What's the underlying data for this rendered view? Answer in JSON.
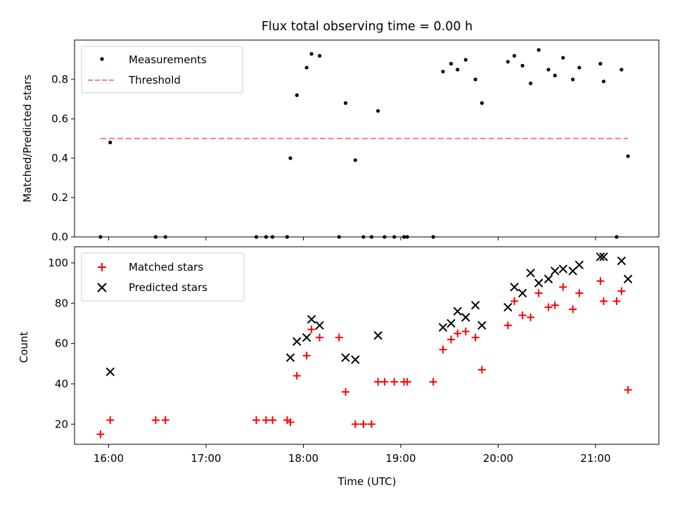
{
  "figure": {
    "title": "Flux total observing time = 0.00 h",
    "xlabel": "Time (UTC)"
  },
  "chart_data": [
    {
      "type": "scatter",
      "panel": "top",
      "ylabel": "Matched/Predicted stars",
      "xlim": [
        "15:39",
        "21:39"
      ],
      "ylim": [
        0,
        1.0
      ],
      "grid": false,
      "legend_placement": "top-left",
      "yticks": [
        0.0,
        0.2,
        0.4,
        0.6,
        0.8
      ],
      "ytick_labels": [
        "0.0",
        "0.2",
        "0.4",
        "0.6",
        "0.8"
      ],
      "series": [
        {
          "name": "Measurements",
          "marker": "dot",
          "color": "#000000",
          "points": [
            [
              "15:55",
              0.0
            ],
            [
              "16:01",
              0.48
            ],
            [
              "16:29",
              0.0
            ],
            [
              "16:35",
              0.0
            ],
            [
              "17:31",
              0.0
            ],
            [
              "17:37",
              0.0
            ],
            [
              "17:41",
              0.0
            ],
            [
              "17:50",
              0.0
            ],
            [
              "17:52",
              0.4
            ],
            [
              "17:56",
              0.72
            ],
            [
              "18:02",
              0.86
            ],
            [
              "18:05",
              0.93
            ],
            [
              "18:10",
              0.92
            ],
            [
              "18:22",
              0.0
            ],
            [
              "18:26",
              0.68
            ],
            [
              "18:32",
              0.39
            ],
            [
              "18:37",
              0.0
            ],
            [
              "18:42",
              0.0
            ],
            [
              "18:46",
              0.64
            ],
            [
              "18:50",
              0.0
            ],
            [
              "18:56",
              0.0
            ],
            [
              "19:02",
              0.0
            ],
            [
              "19:04",
              0.0
            ],
            [
              "19:20",
              0.0
            ],
            [
              "19:26",
              0.84
            ],
            [
              "19:31",
              0.88
            ],
            [
              "19:35",
              0.85
            ],
            [
              "19:40",
              0.9
            ],
            [
              "19:46",
              0.8
            ],
            [
              "19:50",
              0.68
            ],
            [
              "20:06",
              0.89
            ],
            [
              "20:10",
              0.92
            ],
            [
              "20:15",
              0.87
            ],
            [
              "20:20",
              0.78
            ],
            [
              "20:25",
              0.95
            ],
            [
              "20:31",
              0.85
            ],
            [
              "20:35",
              0.82
            ],
            [
              "20:40",
              0.91
            ],
            [
              "20:46",
              0.8
            ],
            [
              "20:50",
              0.86
            ],
            [
              "21:03",
              0.88
            ],
            [
              "21:05",
              0.79
            ],
            [
              "21:13",
              0.0
            ],
            [
              "21:16",
              0.85
            ],
            [
              "21:20",
              0.41
            ]
          ]
        },
        {
          "name": "Threshold",
          "style": "dashed",
          "color": "#ff7f7f",
          "points": [
            [
              "15:55",
              0.5
            ],
            [
              "21:20",
              0.5
            ]
          ]
        }
      ]
    },
    {
      "type": "scatter",
      "panel": "bottom",
      "ylabel": "Count",
      "xlabel": "Time (UTC)",
      "xlim": [
        "15:39",
        "21:39"
      ],
      "ylim": [
        10,
        108
      ],
      "grid": false,
      "legend_placement": "top-left",
      "yticks": [
        20,
        40,
        60,
        80,
        100
      ],
      "ytick_labels": [
        "20",
        "40",
        "60",
        "80",
        "100"
      ],
      "xticks": [
        "16:00",
        "17:00",
        "18:00",
        "19:00",
        "20:00",
        "21:00"
      ],
      "series": [
        {
          "name": "Matched stars",
          "marker": "plus",
          "color": "#ff0000",
          "points": [
            [
              "15:55",
              15
            ],
            [
              "16:01",
              22
            ],
            [
              "16:29",
              22
            ],
            [
              "16:35",
              22
            ],
            [
              "17:31",
              22
            ],
            [
              "17:37",
              22
            ],
            [
              "17:41",
              22
            ],
            [
              "17:50",
              22
            ],
            [
              "17:52",
              21
            ],
            [
              "17:56",
              44
            ],
            [
              "18:02",
              54
            ],
            [
              "18:05",
              67
            ],
            [
              "18:10",
              63
            ],
            [
              "18:22",
              63
            ],
            [
              "18:26",
              36
            ],
            [
              "18:32",
              20
            ],
            [
              "18:37",
              20
            ],
            [
              "18:42",
              20
            ],
            [
              "18:46",
              41
            ],
            [
              "18:50",
              41
            ],
            [
              "18:56",
              41
            ],
            [
              "19:02",
              41
            ],
            [
              "19:04",
              41
            ],
            [
              "19:20",
              41
            ],
            [
              "19:26",
              57
            ],
            [
              "19:31",
              62
            ],
            [
              "19:35",
              65
            ],
            [
              "19:40",
              66
            ],
            [
              "19:46",
              63
            ],
            [
              "19:50",
              47
            ],
            [
              "20:06",
              69
            ],
            [
              "20:10",
              81
            ],
            [
              "20:15",
              74
            ],
            [
              "20:20",
              73
            ],
            [
              "20:25",
              85
            ],
            [
              "20:31",
              78
            ],
            [
              "20:35",
              79
            ],
            [
              "20:40",
              88
            ],
            [
              "20:46",
              77
            ],
            [
              "20:50",
              85
            ],
            [
              "21:03",
              91
            ],
            [
              "21:05",
              81
            ],
            [
              "21:13",
              81
            ],
            [
              "21:16",
              86
            ],
            [
              "21:20",
              37
            ]
          ]
        },
        {
          "name": "Predicted stars",
          "marker": "x",
          "color": "#000000",
          "points": [
            [
              "16:01",
              46
            ],
            [
              "17:52",
              53
            ],
            [
              "17:56",
              61
            ],
            [
              "18:02",
              63
            ],
            [
              "18:05",
              72
            ],
            [
              "18:10",
              69
            ],
            [
              "18:26",
              53
            ],
            [
              "18:32",
              52
            ],
            [
              "18:46",
              64
            ],
            [
              "19:26",
              68
            ],
            [
              "19:31",
              70
            ],
            [
              "19:35",
              76
            ],
            [
              "19:40",
              73
            ],
            [
              "19:46",
              79
            ],
            [
              "19:50",
              69
            ],
            [
              "20:06",
              78
            ],
            [
              "20:10",
              88
            ],
            [
              "20:15",
              85
            ],
            [
              "20:20",
              95
            ],
            [
              "20:25",
              90
            ],
            [
              "20:31",
              92
            ],
            [
              "20:35",
              96
            ],
            [
              "20:40",
              97
            ],
            [
              "20:46",
              96
            ],
            [
              "20:50",
              99
            ],
            [
              "21:03",
              103
            ],
            [
              "21:05",
              103
            ],
            [
              "21:16",
              101
            ],
            [
              "21:20",
              92
            ]
          ]
        }
      ]
    }
  ]
}
